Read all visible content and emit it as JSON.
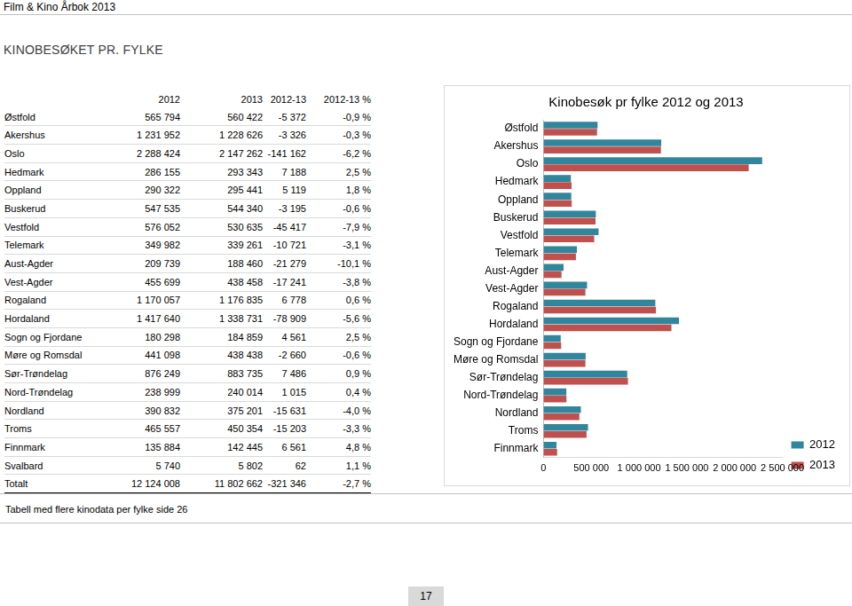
{
  "header": {
    "title": "Film & Kino Årbok 2013"
  },
  "section_title": "KINOBESØKET PR. FYLKE",
  "table": {
    "columns": [
      "2012",
      "2013",
      "2012-13",
      "2012-13 %"
    ],
    "rows": [
      [
        "Østfold",
        "565 794",
        "560 422",
        "-5 372",
        "-0,9 %"
      ],
      [
        "Akershus",
        "1 231 952",
        "1 228 626",
        "-3 326",
        "-0,3 %"
      ],
      [
        "Oslo",
        "2 288 424",
        "2 147 262",
        "-141 162",
        "-6,2 %"
      ],
      [
        "Hedmark",
        "286 155",
        "293 343",
        "7 188",
        "2,5 %"
      ],
      [
        "Oppland",
        "290 322",
        "295 441",
        "5 119",
        "1,8 %"
      ],
      [
        "Buskerud",
        "547 535",
        "544 340",
        "-3 195",
        "-0,6 %"
      ],
      [
        "Vestfold",
        "576 052",
        "530 635",
        "-45 417",
        "-7,9 %"
      ],
      [
        "Telemark",
        "349 982",
        "339 261",
        "-10 721",
        "-3,1 %"
      ],
      [
        "Aust-Agder",
        "209 739",
        "188 460",
        "-21 279",
        "-10,1 %"
      ],
      [
        "Vest-Agder",
        "455 699",
        "438 458",
        "-17 241",
        "-3,8 %"
      ],
      [
        "Rogaland",
        "1 170 057",
        "1 176 835",
        "6 778",
        "0,6 %"
      ],
      [
        "Hordaland",
        "1 417 640",
        "1 338 731",
        "-78 909",
        "-5,6 %"
      ],
      [
        "Sogn og Fjordane",
        "180 298",
        "184 859",
        "4 561",
        "2,5 %"
      ],
      [
        "Møre og Romsdal",
        "441 098",
        "438 438",
        "-2 660",
        "-0,6 %"
      ],
      [
        "Sør-Trøndelag",
        "876 249",
        "883 735",
        "7 486",
        "0,9 %"
      ],
      [
        "Nord-Trøndelag",
        "238 999",
        "240 014",
        "1 015",
        "0,4 %"
      ],
      [
        "Nordland",
        "390 832",
        "375 201",
        "-15 631",
        "-4,0 %"
      ],
      [
        "Troms",
        "465 557",
        "450 354",
        "-15 203",
        "-3,3 %"
      ],
      [
        "Finnmark",
        "135 884",
        "142 445",
        "6 561",
        "4,8 %"
      ],
      [
        "Svalbard",
        "5 740",
        "5 802",
        "62",
        "1,1 %"
      ]
    ],
    "total": [
      "Totalt",
      "12 124 008",
      "11 802 662",
      "-321 346",
      "-2,7 %"
    ]
  },
  "chart_data": {
    "type": "bar",
    "orientation": "horizontal",
    "title": "Kinobesøk pr fylke 2012 og 2013",
    "categories": [
      "Østfold",
      "Akershus",
      "Oslo",
      "Hedmark",
      "Oppland",
      "Buskerud",
      "Vestfold",
      "Telemark",
      "Aust-Agder",
      "Vest-Agder",
      "Rogaland",
      "Hordaland",
      "Sogn og Fjordane",
      "Møre og Romsdal",
      "Sør-Trøndelag",
      "Nord-Trøndelag",
      "Nordland",
      "Troms",
      "Finnmark"
    ],
    "series": [
      {
        "name": "2012",
        "color": "#31859c",
        "values": [
          565794,
          1231952,
          2288424,
          286155,
          290322,
          547535,
          576052,
          349982,
          209739,
          455699,
          1170057,
          1417640,
          180298,
          441098,
          876249,
          238999,
          390832,
          465557,
          135884
        ]
      },
      {
        "name": "2013",
        "color": "#c0504d",
        "values": [
          560422,
          1228626,
          2147262,
          293343,
          295441,
          544340,
          530635,
          339261,
          188460,
          438458,
          1176835,
          1338731,
          184859,
          438438,
          883735,
          240014,
          375201,
          450354,
          142445
        ]
      }
    ],
    "xlim": [
      0,
      2500000
    ],
    "xticks": [
      0,
      {
        "value": 500000,
        "label": "500 000"
      },
      {
        "value": 1000000,
        "label": "1 000 000"
      },
      {
        "value": 1500000,
        "label": "1 500 000"
      },
      {
        "value": 2000000,
        "label": "2 000 000"
      },
      {
        "value": 2500000,
        "label": "2 500 000"
      }
    ],
    "grid": false,
    "legend": "lower right"
  },
  "footer_note": "Tabell med flere kinodata per fylke side 26",
  "page_number": "17"
}
